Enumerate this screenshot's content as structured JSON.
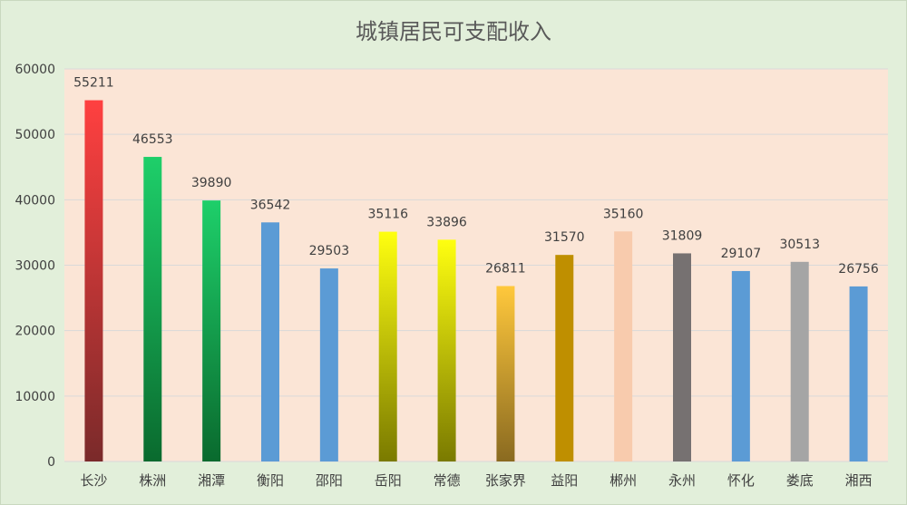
{
  "chart_data": {
    "type": "bar",
    "title": "城镇居民可支配收入",
    "xlabel": "",
    "ylabel": "",
    "ylim": [
      0,
      60000
    ],
    "yticks": [
      0,
      10000,
      20000,
      30000,
      40000,
      50000,
      60000
    ],
    "grid": true,
    "legend": "none",
    "categories": [
      "长沙",
      "株洲",
      "湘潭",
      "衡阳",
      "邵阳",
      "岳阳",
      "常德",
      "张家界",
      "益阳",
      "郴州",
      "永州",
      "怀化",
      "娄底",
      "湘西"
    ],
    "values": [
      55211,
      46553,
      39890,
      36542,
      29503,
      35116,
      33896,
      26811,
      31570,
      35160,
      31809,
      29107,
      30513,
      26756
    ],
    "bar_colors": [
      [
        "#ff4040",
        "#7a2a2a"
      ],
      [
        "#1ecf6a",
        "#0a6a2e"
      ],
      [
        "#1ecf6a",
        "#0a6a2e"
      ],
      [
        "#5b9bd5",
        "#5b9bd5"
      ],
      [
        "#5b9bd5",
        "#5b9bd5"
      ],
      [
        "#ffff10",
        "#7a7a00"
      ],
      [
        "#ffff10",
        "#7a7a00"
      ],
      [
        "#ffc83c",
        "#8a6a20"
      ],
      [
        "#bf8f00",
        "#bf8f00"
      ],
      [
        "#f8cbad",
        "#f8cbad"
      ],
      [
        "#767171",
        "#767171"
      ],
      [
        "#5b9bd5",
        "#5b9bd5"
      ],
      [
        "#a5a5a5",
        "#a5a5a5"
      ],
      [
        "#5b9bd5",
        "#5b9bd5"
      ]
    ],
    "plot_background": "#fbe5d6",
    "page_background": "#e2efda"
  }
}
